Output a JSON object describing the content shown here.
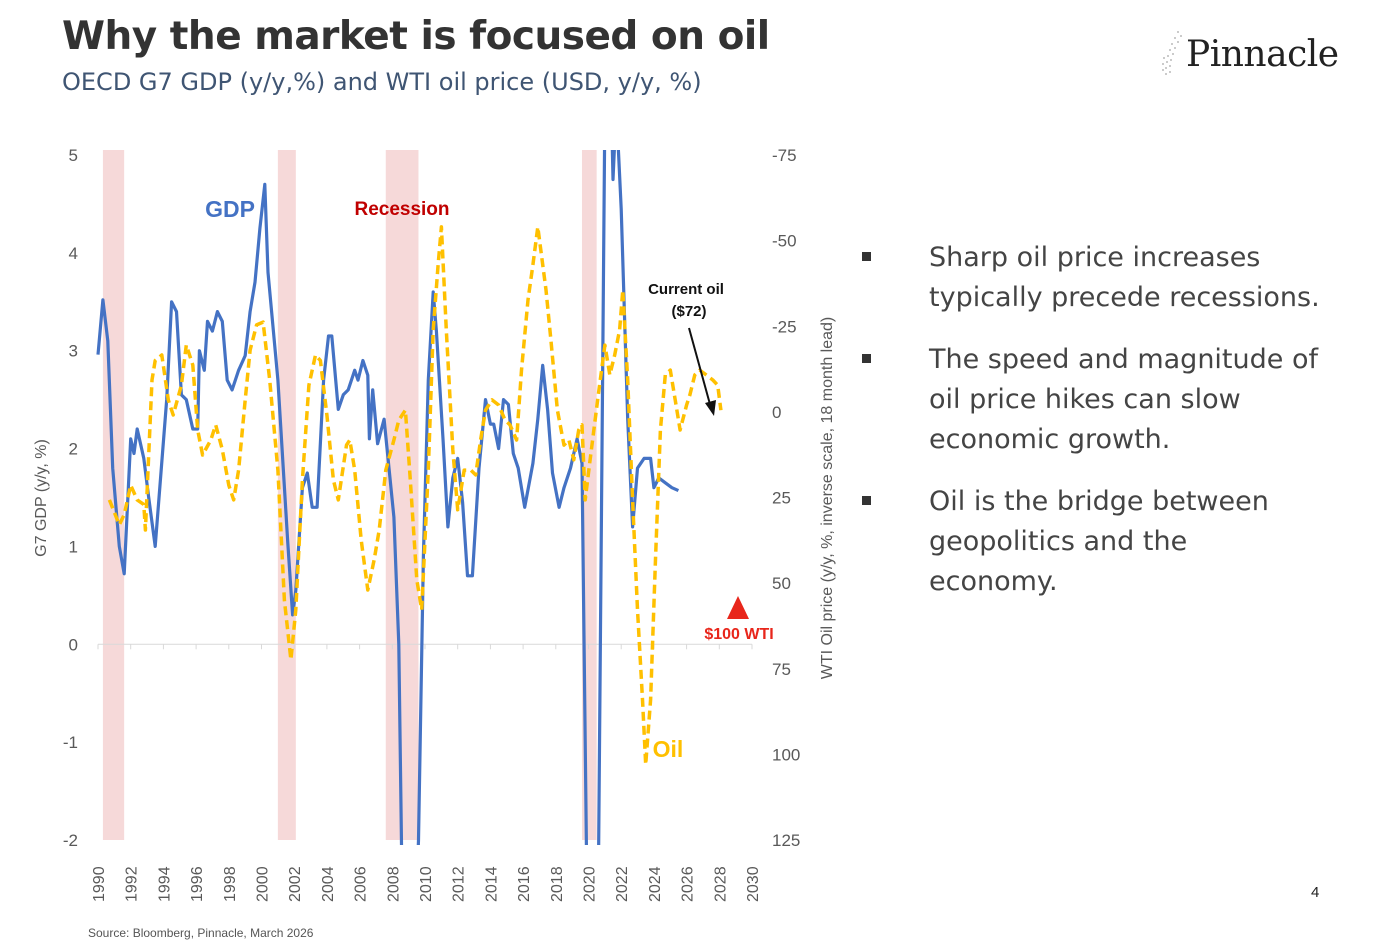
{
  "slide": {
    "title": "Why the market is focused on oil",
    "subtitle": "OECD G7 GDP (y/y,%) and WTI oil price (USD, y/y, %)",
    "logo": "Pinnacle",
    "page_number": "4",
    "source": "Source: Bloomberg, Pinnacle, March 2026",
    "bullets": [
      "Sharp oil price increases typically precede recessions.",
      "The speed and magnitude of oil price hikes can slow economic growth.",
      "Oil is the bridge between geopolitics and the economy."
    ]
  },
  "colors": {
    "gdp": "#4472C4",
    "oil": "#FFC000",
    "recession_band": "#F6D9D9",
    "recession_text": "#C00000",
    "alert": "#E8261B"
  },
  "chart_data": {
    "type": "line",
    "title": "OECD G7 GDP (y/y,%) and WTI oil price (USD, y/y, %)",
    "ylabel": "G7 GDP (y/y, %)",
    "y2label": "WTI Oil price (y/y, %, inverse scale, 18 month lead)",
    "xlim": [
      1990,
      2030
    ],
    "ylim": [
      -2,
      5
    ],
    "y2lim": [
      -75,
      125
    ],
    "y2_inverted": true,
    "x_ticks": [
      "1990",
      "1992",
      "1994",
      "1996",
      "1998",
      "2000",
      "2002",
      "2004",
      "2006",
      "2008",
      "2010",
      "2012",
      "2014",
      "2016",
      "2018",
      "2020",
      "2022",
      "2024",
      "2026",
      "2028",
      "2030"
    ],
    "y_ticks": [
      "5",
      "4",
      "3",
      "2",
      "1",
      "0",
      "-1",
      "-2"
    ],
    "y2_ticks": [
      "-75",
      "-50",
      "-25",
      "0",
      "25",
      "50",
      "75",
      "100",
      "125"
    ],
    "recessions": [
      [
        1990.3,
        1991.6
      ],
      [
        2001.0,
        2002.1
      ],
      [
        2007.6,
        2009.6
      ],
      [
        2019.6,
        2020.5
      ]
    ],
    "annotations": {
      "gdp_label": "GDP",
      "oil_label": "Oil",
      "recession_label": "Recession",
      "current_oil": "Current oil",
      "current_oil_price": "($72)",
      "wti_marker": "$100 WTI"
    },
    "series": [
      {
        "name": "GDP",
        "axis": "left",
        "points": [
          [
            1990.0,
            2.96
          ],
          [
            1990.3,
            3.52
          ],
          [
            1990.6,
            3.1
          ],
          [
            1990.9,
            1.8
          ],
          [
            1991.3,
            1.0
          ],
          [
            1991.6,
            0.72
          ],
          [
            1992.0,
            2.1
          ],
          [
            1992.2,
            1.95
          ],
          [
            1992.4,
            2.2
          ],
          [
            1992.8,
            1.9
          ],
          [
            1993.1,
            1.5
          ],
          [
            1993.5,
            1.0
          ],
          [
            1994.2,
            2.5
          ],
          [
            1994.5,
            3.5
          ],
          [
            1994.8,
            3.4
          ],
          [
            1995.1,
            2.55
          ],
          [
            1995.4,
            2.5
          ],
          [
            1995.8,
            2.2
          ],
          [
            1996.1,
            2.2
          ],
          [
            1996.2,
            3.0
          ],
          [
            1996.5,
            2.8
          ],
          [
            1996.7,
            3.3
          ],
          [
            1997.0,
            3.2
          ],
          [
            1997.3,
            3.4
          ],
          [
            1997.6,
            3.3
          ],
          [
            1997.9,
            2.7
          ],
          [
            1998.2,
            2.6
          ],
          [
            1998.6,
            2.8
          ],
          [
            1999.0,
            2.95
          ],
          [
            1999.3,
            3.4
          ],
          [
            1999.6,
            3.7
          ],
          [
            1999.9,
            4.25
          ],
          [
            2000.2,
            4.7
          ],
          [
            2000.4,
            3.8
          ],
          [
            2001.0,
            2.7
          ],
          [
            2001.6,
            1.05
          ],
          [
            2001.9,
            0.3
          ],
          [
            2002.1,
            0.55
          ],
          [
            2002.5,
            1.6
          ],
          [
            2002.8,
            1.75
          ],
          [
            2003.1,
            1.4
          ],
          [
            2003.4,
            1.4
          ],
          [
            2003.8,
            2.7
          ],
          [
            2004.1,
            3.15
          ],
          [
            2004.3,
            3.15
          ],
          [
            2004.7,
            2.4
          ],
          [
            2005.0,
            2.55
          ],
          [
            2005.3,
            2.6
          ],
          [
            2005.7,
            2.8
          ],
          [
            2005.9,
            2.7
          ],
          [
            2006.2,
            2.9
          ],
          [
            2006.5,
            2.75
          ],
          [
            2006.6,
            2.1
          ],
          [
            2006.8,
            2.6
          ],
          [
            2007.1,
            2.05
          ],
          [
            2007.5,
            2.3
          ],
          [
            2008.1,
            1.3
          ],
          [
            2008.4,
            0.0
          ],
          [
            2008.6,
            -2.5
          ],
          [
            2009.5,
            -2.5
          ],
          [
            2009.6,
            -2.0
          ],
          [
            2009.9,
            0.9
          ],
          [
            2010.2,
            2.7
          ],
          [
            2010.5,
            3.6
          ],
          [
            2010.7,
            3.2
          ],
          [
            2011.1,
            2.1
          ],
          [
            2011.4,
            1.2
          ],
          [
            2011.7,
            1.7
          ],
          [
            2012.0,
            1.9
          ],
          [
            2012.3,
            1.45
          ],
          [
            2012.6,
            0.7
          ],
          [
            2012.9,
            0.7
          ],
          [
            2013.3,
            1.8
          ],
          [
            2013.7,
            2.5
          ],
          [
            2014.0,
            2.25
          ],
          [
            2014.2,
            2.25
          ],
          [
            2014.5,
            2.0
          ],
          [
            2014.8,
            2.5
          ],
          [
            2015.1,
            2.45
          ],
          [
            2015.4,
            1.95
          ],
          [
            2015.7,
            1.8
          ],
          [
            2016.1,
            1.4
          ],
          [
            2016.6,
            1.85
          ],
          [
            2016.9,
            2.3
          ],
          [
            2017.2,
            2.85
          ],
          [
            2017.5,
            2.4
          ],
          [
            2017.8,
            1.75
          ],
          [
            2018.2,
            1.4
          ],
          [
            2018.5,
            1.6
          ],
          [
            2018.9,
            1.8
          ],
          [
            2019.3,
            2.1
          ],
          [
            2019.6,
            1.85
          ],
          [
            2019.9,
            -2.5
          ],
          [
            2020.6,
            -2.5
          ],
          [
            2021.0,
            5.5
          ],
          [
            2021.4,
            5.5
          ],
          [
            2021.5,
            4.75
          ],
          [
            2021.7,
            5.5
          ],
          [
            2022.0,
            4.45
          ],
          [
            2022.4,
            2.3
          ],
          [
            2022.7,
            1.2
          ],
          [
            2023.0,
            1.8
          ],
          [
            2023.4,
            1.9
          ],
          [
            2023.8,
            1.9
          ],
          [
            2024.0,
            1.6
          ],
          [
            2024.3,
            1.7
          ],
          [
            2024.7,
            1.65
          ],
          [
            2025.1,
            1.6
          ],
          [
            2025.5,
            1.57
          ]
        ]
      },
      {
        "name": "Oil",
        "axis": "right",
        "points": [
          [
            1990.7,
            25.7
          ],
          [
            1991.3,
            33
          ],
          [
            1991.6,
            30
          ],
          [
            1992.0,
            21.4
          ],
          [
            1992.4,
            25.7
          ],
          [
            1992.8,
            27
          ],
          [
            1992.9,
            34.5
          ],
          [
            1993.3,
            -9.3
          ],
          [
            1993.5,
            -15
          ],
          [
            1993.9,
            -16.6
          ],
          [
            1994.3,
            -3.5
          ],
          [
            1994.6,
            0.9
          ],
          [
            1995.1,
            -7.8
          ],
          [
            1995.4,
            -19.5
          ],
          [
            1995.8,
            -13.7
          ],
          [
            1996.1,
            5.3
          ],
          [
            1996.4,
            12.6
          ],
          [
            1996.9,
            8.2
          ],
          [
            1997.2,
            3.8
          ],
          [
            1997.6,
            11
          ],
          [
            1998.0,
            21.4
          ],
          [
            1998.3,
            25.7
          ],
          [
            1998.6,
            17
          ],
          [
            1999.0,
            -3.5
          ],
          [
            1999.3,
            -18
          ],
          [
            1999.7,
            -25.4
          ],
          [
            2000.1,
            -26.2
          ],
          [
            2000.5,
            -9.3
          ],
          [
            2001.0,
            17
          ],
          [
            2001.4,
            55
          ],
          [
            2001.8,
            72.4
          ],
          [
            2002.1,
            57.8
          ],
          [
            2002.5,
            19.9
          ],
          [
            2002.9,
            -7.8
          ],
          [
            2003.3,
            -16.6
          ],
          [
            2003.6,
            -15
          ],
          [
            2004.0,
            0.9
          ],
          [
            2004.4,
            19.9
          ],
          [
            2004.7,
            25.7
          ],
          [
            2005.2,
            9.7
          ],
          [
            2005.4,
            8.2
          ],
          [
            2005.7,
            17
          ],
          [
            2006.1,
            37.4
          ],
          [
            2006.5,
            52
          ],
          [
            2006.9,
            43
          ],
          [
            2007.2,
            34.5
          ],
          [
            2007.6,
            17
          ],
          [
            2008.1,
            8.2
          ],
          [
            2008.4,
            2.4
          ],
          [
            2008.8,
            -0.5
          ],
          [
            2009.1,
            19.9
          ],
          [
            2009.5,
            49
          ],
          [
            2009.8,
            57.8
          ],
          [
            2010.2,
            17
          ],
          [
            2010.5,
            -23.9
          ],
          [
            2010.8,
            -42.9
          ],
          [
            2011.0,
            -54
          ],
          [
            2011.3,
            -23.9
          ],
          [
            2011.7,
            11
          ],
          [
            2012.0,
            28.6
          ],
          [
            2012.4,
            17
          ],
          [
            2012.8,
            17
          ],
          [
            2013.1,
            18.4
          ],
          [
            2013.4,
            8.2
          ],
          [
            2013.7,
            -0.5
          ],
          [
            2014.1,
            -3.5
          ],
          [
            2014.5,
            -2
          ],
          [
            2014.9,
            2.4
          ],
          [
            2015.2,
            3.8
          ],
          [
            2015.6,
            8.2
          ],
          [
            2015.9,
            -12.2
          ],
          [
            2016.3,
            -32.7
          ],
          [
            2016.6,
            -42.9
          ],
          [
            2016.9,
            -54
          ],
          [
            2017.4,
            -35.6
          ],
          [
            2017.7,
            -21
          ],
          [
            2018.1,
            -0.5
          ],
          [
            2018.5,
            9.7
          ],
          [
            2018.8,
            8.2
          ],
          [
            2019.1,
            14
          ],
          [
            2019.4,
            5.3
          ],
          [
            2019.6,
            3.8
          ],
          [
            2019.8,
            25.7
          ],
          [
            2020.1,
            14
          ],
          [
            2020.6,
            -5
          ],
          [
            2021.0,
            -19.5
          ],
          [
            2021.3,
            -10.8
          ],
          [
            2021.6,
            -16.6
          ],
          [
            2021.9,
            -23.9
          ],
          [
            2022.1,
            -35.6
          ],
          [
            2022.4,
            -9.3
          ],
          [
            2022.7,
            25.7
          ],
          [
            2023.0,
            57.8
          ],
          [
            2023.3,
            84
          ],
          [
            2023.5,
            103
          ],
          [
            2023.8,
            84
          ],
          [
            2024.1,
            43
          ],
          [
            2024.4,
            5.3
          ],
          [
            2024.7,
            -10.8
          ],
          [
            2025.0,
            -12.2
          ],
          [
            2025.3,
            -3.5
          ],
          [
            2025.6,
            5.3
          ],
          [
            2026.0,
            -2
          ],
          [
            2026.2,
            -5
          ],
          [
            2026.5,
            -10.8
          ],
          [
            2026.8,
            -12.2
          ],
          [
            2027.2,
            -10.8
          ],
          [
            2027.6,
            -9.3
          ],
          [
            2027.9,
            -7.8
          ],
          [
            2028.1,
            -0.5
          ]
        ]
      }
    ],
    "wti_marker_value": 57
  }
}
